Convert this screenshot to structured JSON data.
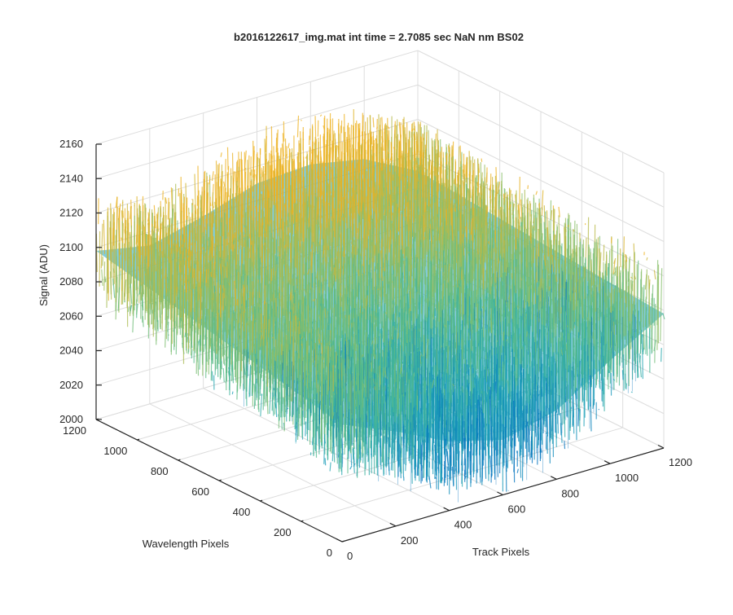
{
  "chart_data": {
    "type": "surface",
    "title": "b2016122617_img.mat int time = 2.7085 sec  NaN nm BS02",
    "xlabel": "Track Pixels",
    "ylabel": "Wavelength Pixels",
    "zlabel": "Signal (ADU)",
    "xlim": [
      0,
      1200
    ],
    "ylim": [
      0,
      1200
    ],
    "zlim": [
      2000,
      2160
    ],
    "x_ticks": [
      "0",
      "200",
      "400",
      "600",
      "800",
      "1000",
      "1200"
    ],
    "y_ticks": [
      "0",
      "200",
      "400",
      "600",
      "800",
      "1000",
      "1200"
    ],
    "z_ticks": [
      "2000",
      "2020",
      "2040",
      "2060",
      "2080",
      "2100",
      "2120",
      "2140",
      "2160"
    ],
    "grid": true,
    "colormap": "parula",
    "colors": {
      "low": "#0072BD",
      "mid_low": "#1FA3B8",
      "mid": "#4FB98F",
      "mid_high": "#8CC06A",
      "high": "#EDB120",
      "axis": "#262626",
      "grid": "#DDDDDD"
    },
    "surface_profile": {
      "track_samples": [
        0,
        200,
        400,
        600,
        800,
        1000,
        1200
      ],
      "mean_signal_at_wavelength_1200": [
        2098,
        2092,
        2100,
        2110,
        2112,
        2106,
        2090
      ],
      "mean_signal_at_wavelength_0": [
        2068,
        2055,
        2040,
        2032,
        2040,
        2060,
        2078
      ],
      "noise_amplitude": 40
    }
  }
}
